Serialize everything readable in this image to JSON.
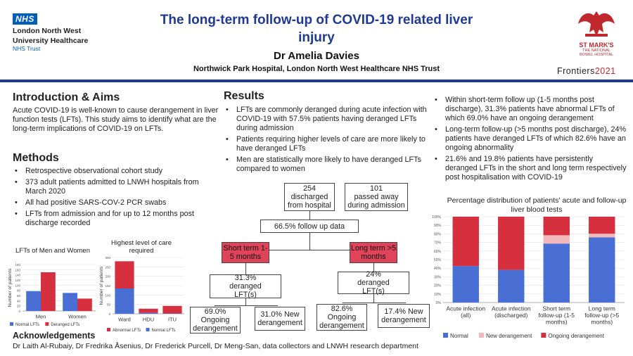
{
  "header": {
    "nhs_badge": "NHS",
    "nhs_org_line1": "London North West",
    "nhs_org_line2": "University Healthcare",
    "nhs_trust": "NHS Trust",
    "title_line1": "The long-term follow-up of COVID-19 related liver",
    "title_line2": "injury",
    "author": "Dr Amelia Davies",
    "affiliation": "Northwick Park Hospital, London North West Healthcare NHS Trust",
    "stmarks_name": "ST MARK'S",
    "stmarks_sub1": "THE NATIONAL",
    "stmarks_sub2": "BOWEL HOSPITAL",
    "frontiers_word": "Frontiers",
    "frontiers_year": "2021",
    "colors": {
      "title_blue": "#1f3a8f",
      "nhs_blue": "#005eb8",
      "stmarks_red": "#c0282e"
    }
  },
  "intro": {
    "heading": "Introduction & Aims",
    "text": "Acute COVID-19 is well-known to cause derangement in liver function tests (LFTs). This study aims to identify what are the long-term implications of COVID-19 on LFTs."
  },
  "methods": {
    "heading": "Methods",
    "items": [
      "Retrospective observational cohort study",
      "373 adult patients admitted to LNWH hospitals from March 2020",
      "All had positive SARS-COV-2 PCR swabs",
      "LFTs from admission and for up to 12 months post discharge recorded"
    ]
  },
  "results": {
    "heading": "Results",
    "items_left": [
      "LFTs are commonly deranged during acute infection with COVID-19 with 57.5% patients having deranged LFTs during admission",
      "Patients requiring higher levels of care are more likely to have deranged LFTs",
      "Men are statistically more likely to have deranged LFTs compared to women"
    ],
    "items_right": [
      "Within short-term follow up (1-5 months post discharge), 31.3% patients have abnormal LFTs of which 69.0% have an ongoing derangement",
      "Long-term follow-up (>5 months post discharge), 24% patients have deranged LFTs of which 82.6% have an ongoing abnormality",
      "21.6% and 19.8% patients have persistently deranged LFTs in the short and long term respectively post hospitalisation with COVID-19"
    ]
  },
  "flow": {
    "discharged_n": "254",
    "discharged_label": "discharged from hospital",
    "died_n": "101",
    "died_label": "passed away during admission",
    "followup": "66.5% follow up data",
    "short_term": "Short term 1-5 months",
    "long_term": "Long term >5 months",
    "short_deranged": "31.3% deranged LFT(s)",
    "long_deranged": "24% deranged LFT(s)",
    "short_ongoing": "69.0% Ongoing derangement",
    "short_new": "31.0% New derangement",
    "long_ongoing": "82.6% Ongoing derangement",
    "long_new": "17.4% New derangement"
  },
  "acknowledgements": {
    "heading": "Acknowledgements",
    "text": "Dr Laith Al-Rubaiy, Dr Fredrika Åsenius, Dr Frederick Purcell, Dr Meng-San, data collectors and LNWH research department"
  },
  "chart_data": [
    {
      "type": "bar",
      "title": "LFTs of Men and Women",
      "ylabel": "Number of patients",
      "categories": [
        "Men",
        "Women"
      ],
      "ylim": [
        0,
        180
      ],
      "yticks": [
        0,
        20,
        40,
        60,
        80,
        100,
        120,
        140,
        160,
        180
      ],
      "series": [
        {
          "name": "Normal LFTs",
          "values": [
            77,
            70
          ],
          "color": "#4a6fd4"
        },
        {
          "name": "Deranged LFTs",
          "values": [
            150,
            48
          ],
          "color": "#d6303f"
        }
      ],
      "legend": "bottom"
    },
    {
      "type": "bar",
      "stacked": true,
      "title": "Highest level of care required",
      "ylabel": "Number of patients",
      "categories": [
        "Ward",
        "HDU",
        "ITU"
      ],
      "ylim": [
        0,
        300
      ],
      "yticks": [
        0,
        50,
        100,
        150,
        200,
        250,
        300
      ],
      "series": [
        {
          "name": "Normal LFTs",
          "values": [
            135,
            5,
            2
          ],
          "color": "#4a6fd4"
        },
        {
          "name": "Abnormal LFTs",
          "values": [
            145,
            22,
            40
          ],
          "color": "#d6303f"
        }
      ],
      "legend": "bottom"
    },
    {
      "type": "bar",
      "stacked": true,
      "title": "Percentage distribution of patients' acute and follow-up liver blood tests",
      "categories": [
        "Acute infection (all)",
        "Acute infection (discharged)",
        "Short term follow-up (1-5 months)",
        "Long term follow-up (>5 months)"
      ],
      "ylim": [
        0,
        100
      ],
      "yticks": [
        "0%",
        "10%",
        "20%",
        "30%",
        "40%",
        "50%",
        "60%",
        "70%",
        "80%",
        "90%",
        "100%"
      ],
      "series": [
        {
          "name": "Normal",
          "values": [
            42.5,
            38,
            68.7,
            76
          ],
          "color": "#4a6fd4"
        },
        {
          "name": "New derangement",
          "values": [
            0,
            0,
            9.7,
            4.2
          ],
          "color": "#f2b8bc"
        },
        {
          "name": "Ongoing derangement",
          "values": [
            57.5,
            62,
            21.6,
            19.8
          ],
          "color": "#d6303f"
        }
      ],
      "legend": "bottom"
    }
  ]
}
